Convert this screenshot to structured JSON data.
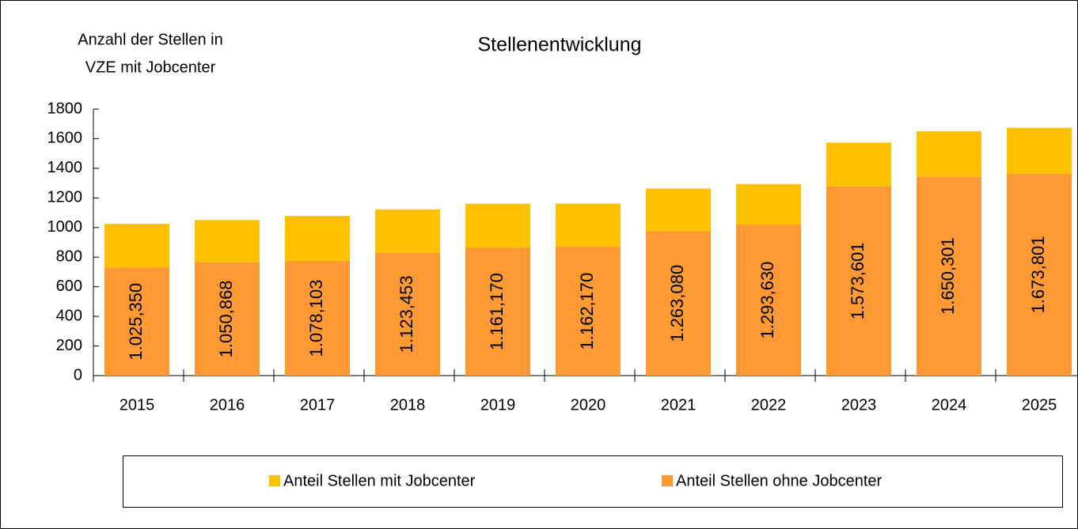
{
  "chart_data": {
    "type": "stacked_bar",
    "title": "Stellenentwicklung",
    "ylabel": [
      "Anzahl der Stellen in",
      "VZE mit Jobcenter"
    ],
    "categories": [
      "2015",
      "2016",
      "2017",
      "2018",
      "2019",
      "2020",
      "2021",
      "2022",
      "2023",
      "2024",
      "2025"
    ],
    "series": [
      {
        "name": "Anteil Stellen ohne Jobcenter",
        "color": "#ff9933",
        "values": [
          730,
          765,
          775,
          830,
          865,
          870,
          975,
          1020,
          1278,
          1345,
          1363
        ]
      },
      {
        "name": "Anteil Stellen mit Jobcenter",
        "color": "#ffc000",
        "values": [
          295,
          286,
          303,
          293,
          296,
          292,
          288,
          274,
          296,
          305,
          311
        ]
      }
    ],
    "data_labels": {
      "values": [
        1025.35,
        1050.868,
        1078.103,
        1123.453,
        1161.17,
        1162.17,
        1263.08,
        1293.63,
        1573.601,
        1650.301,
        1673.801
      ],
      "value_labels": [
        "1.025,350",
        "1.050,868",
        "1.078,103",
        "1.123,453",
        "1.161,170",
        "1.162,170",
        "1.263,080",
        "1.293,630",
        "1.573,601",
        "1.650,301",
        "1.673,801"
      ]
    },
    "ylim": [
      0,
      1800
    ],
    "yticks": [
      0,
      200,
      400,
      600,
      800,
      1000,
      1200,
      1400,
      1600,
      1800
    ],
    "grid": false
  }
}
